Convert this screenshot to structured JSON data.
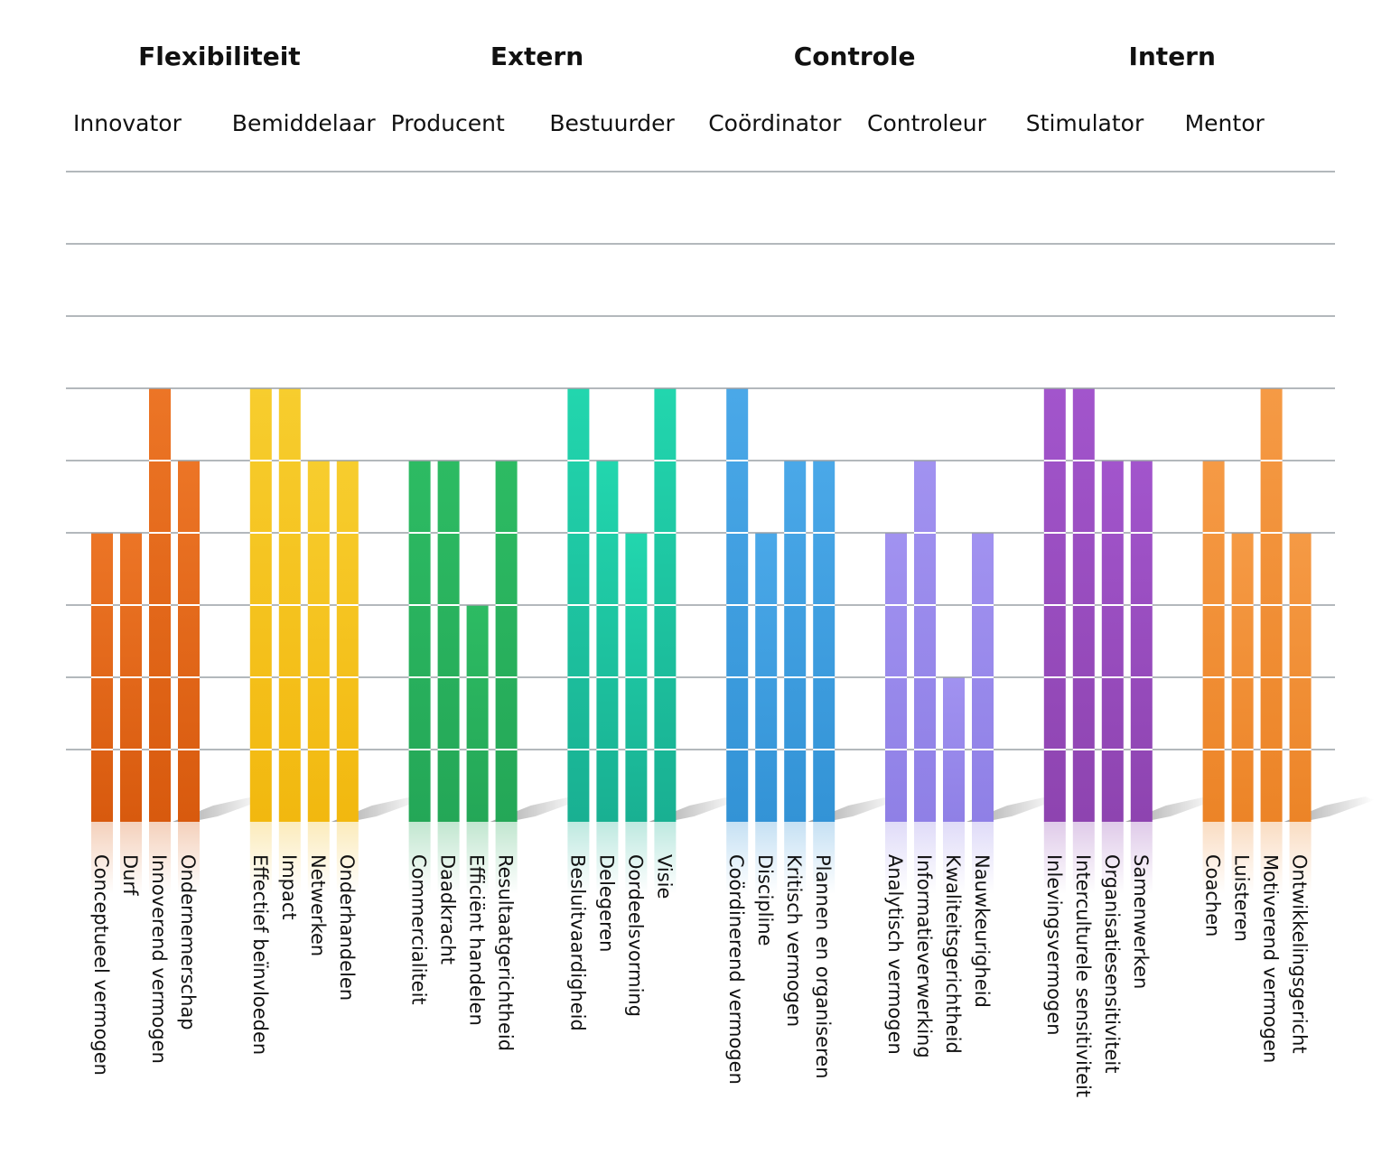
{
  "chart_data": {
    "type": "bar",
    "ylim": [
      0,
      9
    ],
    "grid": true,
    "quadrants": [
      {
        "title": "Flexibiliteit",
        "roles": [
          0,
          1
        ]
      },
      {
        "title": "Extern",
        "roles": [
          2,
          3
        ]
      },
      {
        "title": "Controle",
        "roles": [
          4,
          5
        ]
      },
      {
        "title": "Intern",
        "roles": [
          6,
          7
        ]
      }
    ],
    "roles": [
      {
        "name": "Innovator",
        "color_top": "#ec7526",
        "color_bottom": "#d85a0e",
        "competencies": [
          {
            "label": "Conceptueel vermogen",
            "value": 4
          },
          {
            "label": "Durf",
            "value": 4
          },
          {
            "label": "Innoverend vermogen",
            "value": 6
          },
          {
            "label": "Ondernemerschap",
            "value": 5
          }
        ]
      },
      {
        "name": "Bemiddelaar",
        "color_top": "#f7cd2e",
        "color_bottom": "#f2b80f",
        "competencies": [
          {
            "label": "Effectief beïnvloeden",
            "value": 6
          },
          {
            "label": "Impact",
            "value": 6
          },
          {
            "label": "Netwerken",
            "value": 5
          },
          {
            "label": "Onderhandelen",
            "value": 5
          }
        ]
      },
      {
        "name": "Producent",
        "color_top": "#2dbb63",
        "color_bottom": "#24a757",
        "competencies": [
          {
            "label": "Commercialiteit",
            "value": 5
          },
          {
            "label": "Daadkracht",
            "value": 5
          },
          {
            "label": "Efficiënt handelen",
            "value": 3
          },
          {
            "label": "Resultaatgerichtheid",
            "value": 5
          }
        ]
      },
      {
        "name": "Bestuurder",
        "color_top": "#22d6ae",
        "color_bottom": "#19b092",
        "competencies": [
          {
            "label": "Besluitvaardigheid",
            "value": 6
          },
          {
            "label": "Delegeren",
            "value": 5
          },
          {
            "label": "Oordeelsvorming",
            "value": 4
          },
          {
            "label": "Visie",
            "value": 6
          }
        ]
      },
      {
        "name": "Coördinator",
        "color_top": "#4aa8e8",
        "color_bottom": "#3393d6",
        "competencies": [
          {
            "label": "Coördinerend vermogen",
            "value": 6
          },
          {
            "label": "Discipline",
            "value": 4
          },
          {
            "label": "Kritisch vermogen",
            "value": 5
          },
          {
            "label": "Plannen en organiseren",
            "value": 5
          }
        ]
      },
      {
        "name": "Controleur",
        "color_top": "#a192f0",
        "color_bottom": "#8f80e6",
        "competencies": [
          {
            "label": "Analytisch vermogen",
            "value": 4
          },
          {
            "label": "Informatieverwerking",
            "value": 5
          },
          {
            "label": "Kwaliteitsgerichtheid",
            "value": 2
          },
          {
            "label": "Nauwkeurigheid",
            "value": 4
          }
        ]
      },
      {
        "name": "Stimulator",
        "color_top": "#a255cc",
        "color_bottom": "#8e44b0",
        "competencies": [
          {
            "label": "Inlevingsvermogen",
            "value": 6
          },
          {
            "label": "Interculturele sensitiviteit",
            "value": 6
          },
          {
            "label": "Organisatiesensitiviteit",
            "value": 5
          },
          {
            "label": "Samenwerken",
            "value": 5
          }
        ]
      },
      {
        "name": "Mentor",
        "color_top": "#f59a45",
        "color_bottom": "#ec8427",
        "competencies": [
          {
            "label": "Coachen",
            "value": 5
          },
          {
            "label": "Luisteren",
            "value": 4
          },
          {
            "label": "Motiverend vermogen",
            "value": 6
          },
          {
            "label": "Ontwikkelingsgericht",
            "value": 4
          }
        ]
      }
    ]
  }
}
